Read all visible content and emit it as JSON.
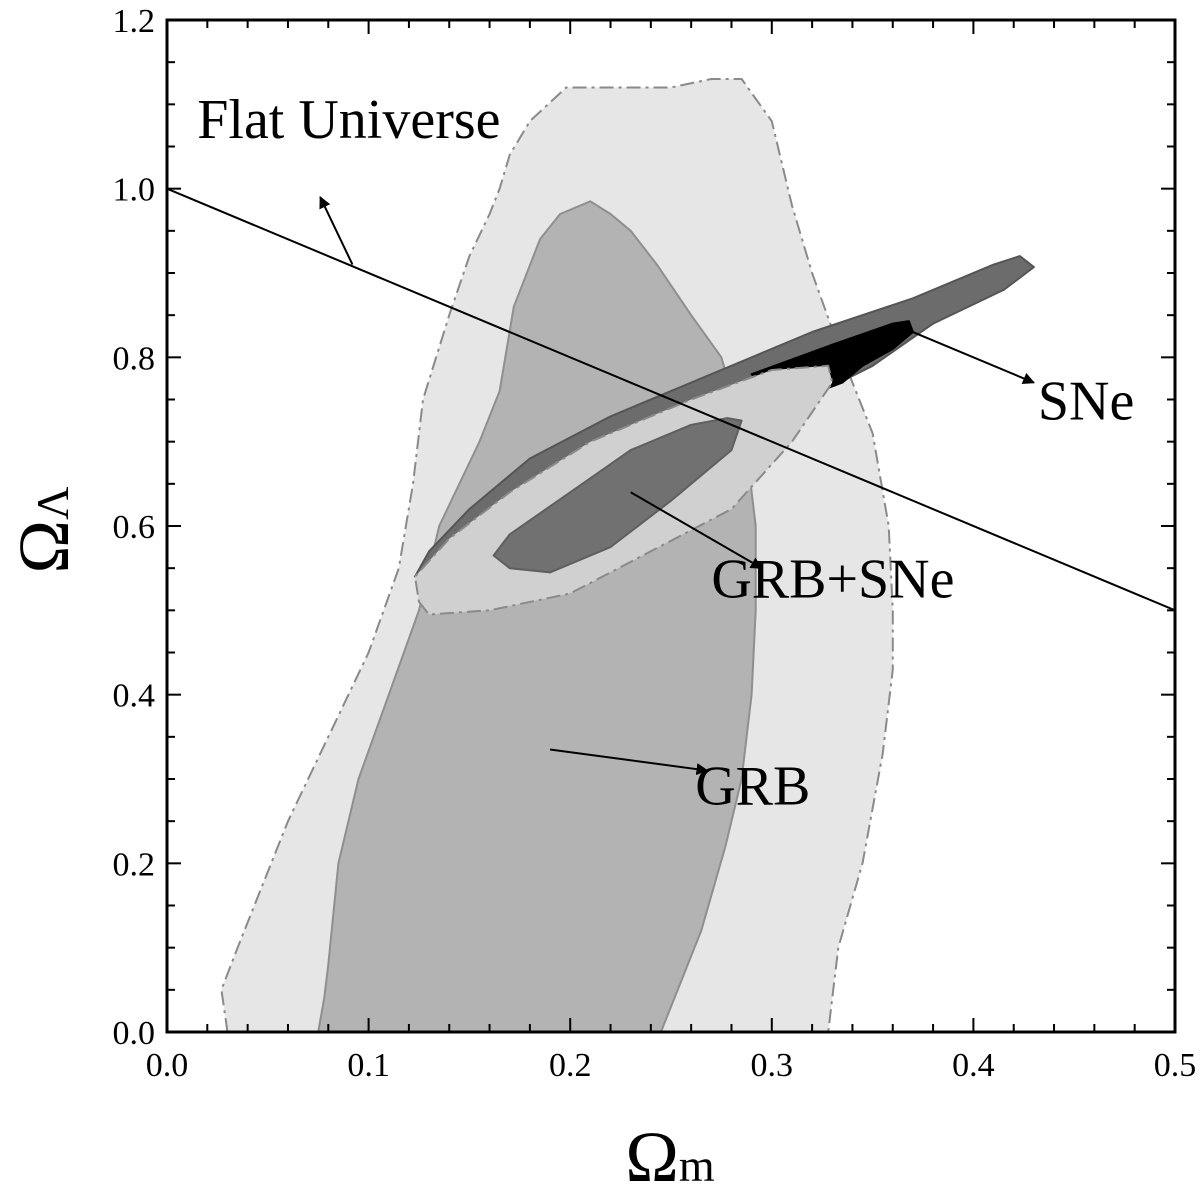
{
  "chart_data": {
    "type": "contour",
    "title": "",
    "xlabel": "Ω",
    "xlabel_sub": "m",
    "ylabel": "Ω",
    "ylabel_sub": "Λ",
    "xlim": [
      0.0,
      0.5
    ],
    "ylim": [
      0.0,
      1.2
    ],
    "x_ticks": [
      "0.0",
      "0.1",
      "0.2",
      "0.3",
      "0.4",
      "0.5"
    ],
    "y_ticks": [
      "0.0",
      "0.2",
      "0.4",
      "0.6",
      "0.8",
      "1.0",
      "1.2"
    ],
    "grid": false,
    "regions": [
      {
        "id": "grb-outer",
        "fill": "#e6e6e6",
        "stroke": "#8a8a8a",
        "dashed": true,
        "points": [
          [
            0.03,
            0.0
          ],
          [
            0.027,
            0.05
          ],
          [
            0.035,
            0.1
          ],
          [
            0.045,
            0.16
          ],
          [
            0.06,
            0.25
          ],
          [
            0.08,
            0.35
          ],
          [
            0.1,
            0.45
          ],
          [
            0.115,
            0.55
          ],
          [
            0.122,
            0.65
          ],
          [
            0.127,
            0.75
          ],
          [
            0.14,
            0.85
          ],
          [
            0.15,
            0.92
          ],
          [
            0.16,
            0.97
          ],
          [
            0.165,
            1.0
          ],
          [
            0.17,
            1.04
          ],
          [
            0.18,
            1.08
          ],
          [
            0.198,
            1.12
          ],
          [
            0.228,
            1.12
          ],
          [
            0.25,
            1.12
          ],
          [
            0.27,
            1.13
          ],
          [
            0.285,
            1.13
          ],
          [
            0.3,
            1.08
          ],
          [
            0.305,
            1.03
          ],
          [
            0.31,
            0.98
          ],
          [
            0.32,
            0.9
          ],
          [
            0.335,
            0.8
          ],
          [
            0.35,
            0.71
          ],
          [
            0.358,
            0.6
          ],
          [
            0.36,
            0.5
          ],
          [
            0.36,
            0.43
          ],
          [
            0.355,
            0.33
          ],
          [
            0.345,
            0.2
          ],
          [
            0.333,
            0.1
          ],
          [
            0.328,
            0.0
          ]
        ]
      },
      {
        "id": "grb-inner",
        "fill": "#b3b3b3",
        "stroke": "#8f8f8f",
        "dashed": false,
        "points": [
          [
            0.075,
            0.0
          ],
          [
            0.078,
            0.04
          ],
          [
            0.08,
            0.08
          ],
          [
            0.085,
            0.2
          ],
          [
            0.095,
            0.3
          ],
          [
            0.11,
            0.4
          ],
          [
            0.125,
            0.5
          ],
          [
            0.135,
            0.6
          ],
          [
            0.155,
            0.7
          ],
          [
            0.165,
            0.76
          ],
          [
            0.172,
            0.86
          ],
          [
            0.185,
            0.94
          ],
          [
            0.195,
            0.97
          ],
          [
            0.21,
            0.985
          ],
          [
            0.22,
            0.97
          ],
          [
            0.23,
            0.95
          ],
          [
            0.243,
            0.91
          ],
          [
            0.26,
            0.85
          ],
          [
            0.275,
            0.8
          ],
          [
            0.287,
            0.7
          ],
          [
            0.292,
            0.6
          ],
          [
            0.292,
            0.5
          ],
          [
            0.29,
            0.4
          ],
          [
            0.285,
            0.3
          ],
          [
            0.277,
            0.22
          ],
          [
            0.265,
            0.12
          ],
          [
            0.255,
            0.06
          ],
          [
            0.245,
            0.0
          ]
        ]
      },
      {
        "id": "sne-outer",
        "fill": "#6c6c6c",
        "stroke": "#555555",
        "dashed": false,
        "points": [
          [
            0.123,
            0.54
          ],
          [
            0.13,
            0.57
          ],
          [
            0.15,
            0.62
          ],
          [
            0.18,
            0.68
          ],
          [
            0.22,
            0.73
          ],
          [
            0.27,
            0.78
          ],
          [
            0.32,
            0.83
          ],
          [
            0.37,
            0.87
          ],
          [
            0.41,
            0.91
          ],
          [
            0.423,
            0.92
          ],
          [
            0.43,
            0.907
          ],
          [
            0.415,
            0.88
          ],
          [
            0.38,
            0.84
          ],
          [
            0.35,
            0.79
          ],
          [
            0.3,
            0.73
          ],
          [
            0.26,
            0.69
          ],
          [
            0.22,
            0.65
          ],
          [
            0.18,
            0.61
          ],
          [
            0.15,
            0.58
          ],
          [
            0.13,
            0.55
          ]
        ]
      },
      {
        "id": "sne-inner",
        "fill": "#000000",
        "stroke": "#000000",
        "dashed": false,
        "points": [
          [
            0.29,
            0.78
          ],
          [
            0.33,
            0.815
          ],
          [
            0.36,
            0.84
          ],
          [
            0.368,
            0.843
          ],
          [
            0.37,
            0.83
          ],
          [
            0.36,
            0.81
          ],
          [
            0.345,
            0.79
          ],
          [
            0.335,
            0.77
          ],
          [
            0.315,
            0.752
          ],
          [
            0.3,
            0.76
          ]
        ]
      },
      {
        "id": "combined-outer",
        "fill": "#d0d0d0",
        "stroke": "#8a8a8a",
        "dashed": true,
        "points": [
          [
            0.125,
            0.51
          ],
          [
            0.13,
            0.495
          ],
          [
            0.16,
            0.5
          ],
          [
            0.2,
            0.52
          ],
          [
            0.24,
            0.57
          ],
          [
            0.28,
            0.62
          ],
          [
            0.31,
            0.7
          ],
          [
            0.33,
            0.77
          ],
          [
            0.328,
            0.79
          ],
          [
            0.3,
            0.785
          ],
          [
            0.26,
            0.75
          ],
          [
            0.21,
            0.7
          ],
          [
            0.17,
            0.64
          ],
          [
            0.14,
            0.585
          ],
          [
            0.123,
            0.54
          ]
        ]
      },
      {
        "id": "combined-inner",
        "fill": "#717171",
        "stroke": "#5f5f5f",
        "dashed": false,
        "points": [
          [
            0.162,
            0.565
          ],
          [
            0.17,
            0.55
          ],
          [
            0.19,
            0.545
          ],
          [
            0.22,
            0.575
          ],
          [
            0.25,
            0.63
          ],
          [
            0.28,
            0.69
          ],
          [
            0.285,
            0.725
          ],
          [
            0.278,
            0.728
          ],
          [
            0.26,
            0.72
          ],
          [
            0.23,
            0.69
          ],
          [
            0.2,
            0.64
          ],
          [
            0.17,
            0.59
          ]
        ]
      }
    ],
    "lines": [
      {
        "id": "flat-universe",
        "points": [
          [
            0.0,
            1.0
          ],
          [
            0.5,
            0.5
          ]
        ]
      }
    ],
    "annotations": [
      {
        "id": "flat-universe",
        "text": "Flat Universe",
        "anchor": [
          0.015,
          1.06
        ],
        "arrow_from": [
          0.092,
          0.91
        ],
        "arrow_to": [
          0.076,
          0.99
        ]
      },
      {
        "id": "sne",
        "text": "SNe",
        "anchor": [
          0.432,
          0.726
        ],
        "arrow_from": [
          0.37,
          0.83
        ],
        "arrow_to": [
          0.43,
          0.77
        ]
      },
      {
        "id": "grb-sne",
        "text": "GRB+SNe",
        "anchor": [
          0.27,
          0.515
        ],
        "arrow_from": [
          0.23,
          0.64
        ],
        "arrow_to": [
          0.295,
          0.55
        ]
      },
      {
        "id": "grb",
        "text": "GRB",
        "anchor": [
          0.262,
          0.27
        ],
        "arrow_from": [
          0.19,
          0.335
        ],
        "arrow_to": [
          0.268,
          0.31
        ]
      }
    ]
  }
}
